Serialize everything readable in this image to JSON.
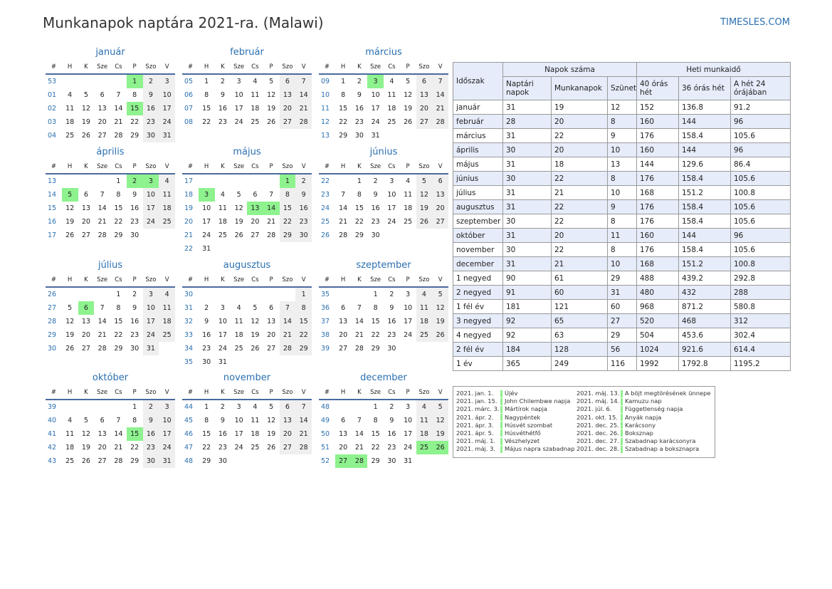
{
  "title": "Munkanapok naptára 2021-ra. (Malawi)",
  "brand": "TIMESLES.COM",
  "weekday_headers": [
    "#",
    "H",
    "K",
    "Sze",
    "Cs",
    "P",
    "Szo",
    "V"
  ],
  "months": [
    {
      "name": "január",
      "weeks": [
        [
          "53",
          "",
          "",
          "",
          "",
          "1",
          "2",
          "3"
        ],
        [
          "01",
          "4",
          "5",
          "6",
          "7",
          "8",
          "9",
          "10"
        ],
        [
          "02",
          "11",
          "12",
          "13",
          "14",
          "15",
          "16",
          "17"
        ],
        [
          "03",
          "18",
          "19",
          "20",
          "21",
          "22",
          "23",
          "24"
        ],
        [
          "04",
          "25",
          "26",
          "27",
          "28",
          "29",
          "30",
          "31"
        ]
      ],
      "holidays": [
        "1",
        "15"
      ]
    },
    {
      "name": "február",
      "weeks": [
        [
          "05",
          "1",
          "2",
          "3",
          "4",
          "5",
          "6",
          "7"
        ],
        [
          "06",
          "8",
          "9",
          "10",
          "11",
          "12",
          "13",
          "14"
        ],
        [
          "07",
          "15",
          "16",
          "17",
          "18",
          "19",
          "20",
          "21"
        ],
        [
          "08",
          "22",
          "23",
          "24",
          "25",
          "26",
          "27",
          "28"
        ]
      ],
      "holidays": []
    },
    {
      "name": "március",
      "weeks": [
        [
          "09",
          "1",
          "2",
          "3",
          "4",
          "5",
          "6",
          "7"
        ],
        [
          "10",
          "8",
          "9",
          "10",
          "11",
          "12",
          "13",
          "14"
        ],
        [
          "11",
          "15",
          "16",
          "17",
          "18",
          "19",
          "20",
          "21"
        ],
        [
          "12",
          "22",
          "23",
          "24",
          "25",
          "26",
          "27",
          "28"
        ],
        [
          "13",
          "29",
          "30",
          "31",
          "",
          "",
          "",
          ""
        ]
      ],
      "holidays": [
        "3"
      ]
    },
    {
      "name": "április",
      "weeks": [
        [
          "13",
          "",
          "",
          "",
          "1",
          "2",
          "3",
          "4"
        ],
        [
          "14",
          "5",
          "6",
          "7",
          "8",
          "9",
          "10",
          "11"
        ],
        [
          "15",
          "12",
          "13",
          "14",
          "15",
          "16",
          "17",
          "18"
        ],
        [
          "16",
          "19",
          "20",
          "21",
          "22",
          "23",
          "24",
          "25"
        ],
        [
          "17",
          "26",
          "27",
          "28",
          "29",
          "30",
          "",
          ""
        ]
      ],
      "holidays": [
        "2",
        "3",
        "5"
      ]
    },
    {
      "name": "május",
      "weeks": [
        [
          "17",
          "",
          "",
          "",
          "",
          "",
          "1",
          "2"
        ],
        [
          "18",
          "3",
          "4",
          "5",
          "6",
          "7",
          "8",
          "9"
        ],
        [
          "19",
          "10",
          "11",
          "12",
          "13",
          "14",
          "15",
          "16"
        ],
        [
          "20",
          "17",
          "18",
          "19",
          "20",
          "21",
          "22",
          "23"
        ],
        [
          "21",
          "24",
          "25",
          "26",
          "27",
          "28",
          "29",
          "30"
        ],
        [
          "22",
          "31",
          "",
          "",
          "",
          "",
          "",
          ""
        ]
      ],
      "holidays": [
        "1",
        "3",
        "13",
        "14"
      ]
    },
    {
      "name": "június",
      "weeks": [
        [
          "22",
          "",
          "1",
          "2",
          "3",
          "4",
          "5",
          "6"
        ],
        [
          "23",
          "7",
          "8",
          "9",
          "10",
          "11",
          "12",
          "13"
        ],
        [
          "24",
          "14",
          "15",
          "16",
          "17",
          "18",
          "19",
          "20"
        ],
        [
          "25",
          "21",
          "22",
          "23",
          "24",
          "25",
          "26",
          "27"
        ],
        [
          "26",
          "28",
          "29",
          "30",
          "",
          "",
          "",
          ""
        ]
      ],
      "holidays": []
    },
    {
      "name": "július",
      "weeks": [
        [
          "26",
          "",
          "",
          "",
          "1",
          "2",
          "3",
          "4"
        ],
        [
          "27",
          "5",
          "6",
          "7",
          "8",
          "9",
          "10",
          "11"
        ],
        [
          "28",
          "12",
          "13",
          "14",
          "15",
          "16",
          "17",
          "18"
        ],
        [
          "29",
          "19",
          "20",
          "21",
          "22",
          "23",
          "24",
          "25"
        ],
        [
          "30",
          "26",
          "27",
          "28",
          "29",
          "30",
          "31",
          ""
        ]
      ],
      "holidays": [
        "6"
      ]
    },
    {
      "name": "augusztus",
      "weeks": [
        [
          "30",
          "",
          "",
          "",
          "",
          "",
          "",
          "1"
        ],
        [
          "31",
          "2",
          "3",
          "4",
          "5",
          "6",
          "7",
          "8"
        ],
        [
          "32",
          "9",
          "10",
          "11",
          "12",
          "13",
          "14",
          "15"
        ],
        [
          "33",
          "16",
          "17",
          "18",
          "19",
          "20",
          "21",
          "22"
        ],
        [
          "34",
          "23",
          "24",
          "25",
          "26",
          "27",
          "28",
          "29"
        ],
        [
          "35",
          "30",
          "31",
          "",
          "",
          "",
          "",
          ""
        ]
      ],
      "holidays": []
    },
    {
      "name": "szeptember",
      "weeks": [
        [
          "35",
          "",
          "",
          "1",
          "2",
          "3",
          "4",
          "5"
        ],
        [
          "36",
          "6",
          "7",
          "8",
          "9",
          "10",
          "11",
          "12"
        ],
        [
          "37",
          "13",
          "14",
          "15",
          "16",
          "17",
          "18",
          "19"
        ],
        [
          "38",
          "20",
          "21",
          "22",
          "23",
          "24",
          "25",
          "26"
        ],
        [
          "39",
          "27",
          "28",
          "29",
          "30",
          "",
          "",
          ""
        ]
      ],
      "holidays": []
    },
    {
      "name": "október",
      "weeks": [
        [
          "39",
          "",
          "",
          "",
          "",
          "1",
          "2",
          "3"
        ],
        [
          "40",
          "4",
          "5",
          "6",
          "7",
          "8",
          "9",
          "10"
        ],
        [
          "41",
          "11",
          "12",
          "13",
          "14",
          "15",
          "16",
          "17"
        ],
        [
          "42",
          "18",
          "19",
          "20",
          "21",
          "22",
          "23",
          "24"
        ],
        [
          "43",
          "25",
          "26",
          "27",
          "28",
          "29",
          "30",
          "31"
        ]
      ],
      "holidays": [
        "15"
      ]
    },
    {
      "name": "november",
      "weeks": [
        [
          "44",
          "1",
          "2",
          "3",
          "4",
          "5",
          "6",
          "7"
        ],
        [
          "45",
          "8",
          "9",
          "10",
          "11",
          "12",
          "13",
          "14"
        ],
        [
          "46",
          "15",
          "16",
          "17",
          "18",
          "19",
          "20",
          "21"
        ],
        [
          "47",
          "22",
          "23",
          "24",
          "25",
          "26",
          "27",
          "28"
        ],
        [
          "48",
          "29",
          "30",
          "",
          "",
          "",
          "",
          ""
        ]
      ],
      "holidays": []
    },
    {
      "name": "december",
      "weeks": [
        [
          "48",
          "",
          "",
          "1",
          "2",
          "3",
          "4",
          "5"
        ],
        [
          "49",
          "6",
          "7",
          "8",
          "9",
          "10",
          "11",
          "12"
        ],
        [
          "50",
          "13",
          "14",
          "15",
          "16",
          "17",
          "18",
          "19"
        ],
        [
          "51",
          "20",
          "21",
          "22",
          "23",
          "24",
          "25",
          "26"
        ],
        [
          "52",
          "27",
          "28",
          "29",
          "30",
          "31",
          "",
          ""
        ]
      ],
      "holidays": [
        "25",
        "26",
        "27",
        "28"
      ]
    }
  ],
  "stats": {
    "col_period": "Időszak",
    "group_days": "Napok száma",
    "group_hours": "Heti munkaidő",
    "cols": [
      "Naptári napok",
      "Munkanapok",
      "Szünet",
      "40 órás hét",
      "36 órás hét",
      "A hét 24 órájában"
    ],
    "rows": [
      [
        "január",
        "31",
        "19",
        "12",
        "152",
        "136.8",
        "91.2"
      ],
      [
        "február",
        "28",
        "20",
        "8",
        "160",
        "144",
        "96"
      ],
      [
        "március",
        "31",
        "22",
        "9",
        "176",
        "158.4",
        "105.6"
      ],
      [
        "április",
        "30",
        "20",
        "10",
        "160",
        "144",
        "96"
      ],
      [
        "május",
        "31",
        "18",
        "13",
        "144",
        "129.6",
        "86.4"
      ],
      [
        "június",
        "30",
        "22",
        "8",
        "176",
        "158.4",
        "105.6"
      ],
      [
        "július",
        "31",
        "21",
        "10",
        "168",
        "151.2",
        "100.8"
      ],
      [
        "augusztus",
        "31",
        "22",
        "9",
        "176",
        "158.4",
        "105.6"
      ],
      [
        "szeptember",
        "30",
        "22",
        "8",
        "176",
        "158.4",
        "105.6"
      ],
      [
        "október",
        "31",
        "20",
        "11",
        "160",
        "144",
        "96"
      ],
      [
        "november",
        "30",
        "22",
        "8",
        "176",
        "158.4",
        "105.6"
      ],
      [
        "december",
        "31",
        "21",
        "10",
        "168",
        "151.2",
        "100.8"
      ],
      [
        "1 negyed",
        "90",
        "61",
        "29",
        "488",
        "439.2",
        "292.8"
      ],
      [
        "2 negyed",
        "91",
        "60",
        "31",
        "480",
        "432",
        "288"
      ],
      [
        "1 fél év",
        "181",
        "121",
        "60",
        "968",
        "871.2",
        "580.8"
      ],
      [
        "3 negyed",
        "92",
        "65",
        "27",
        "520",
        "468",
        "312"
      ],
      [
        "4 negyed",
        "92",
        "63",
        "29",
        "504",
        "453.6",
        "302.4"
      ],
      [
        "2 fél év",
        "184",
        "128",
        "56",
        "1024",
        "921.6",
        "614.4"
      ],
      [
        "1 év",
        "365",
        "249",
        "116",
        "1992",
        "1792.8",
        "1195.2"
      ]
    ]
  },
  "holidays_left": [
    {
      "date": "2021. jan. 1.",
      "name": "Újév"
    },
    {
      "date": "2021. jan. 15.",
      "name": "John Chilembwe napja"
    },
    {
      "date": "2021. márc. 3.",
      "name": "Mártírok napja"
    },
    {
      "date": "2021. ápr. 2.",
      "name": "Nagypéntek"
    },
    {
      "date": "2021. ápr. 3.",
      "name": "Húsvét szombat"
    },
    {
      "date": "2021. ápr. 5.",
      "name": "Húsvéthétfő"
    },
    {
      "date": "2021. máj. 1.",
      "name": "Vészhelyzet"
    },
    {
      "date": "2021. máj. 3.",
      "name": "Május napra szabadnap"
    }
  ],
  "holidays_right": [
    {
      "date": "2021. máj. 13.",
      "name": "A böjt megtörésének ünnepe"
    },
    {
      "date": "2021. máj. 14.",
      "name": "Kamuzu nap"
    },
    {
      "date": "2021. júl. 6.",
      "name": "Függetlenség napja"
    },
    {
      "date": "2021. okt. 15.",
      "name": "Anyák napja"
    },
    {
      "date": "2021. dec. 25.",
      "name": "Karácsony"
    },
    {
      "date": "2021. dec. 26.",
      "name": "Boksznap"
    },
    {
      "date": "2021. dec. 27.",
      "name": "Szabadnap karácsonyra"
    },
    {
      "date": "2021. dec. 28.",
      "name": "Szabadnap a boksznapra"
    }
  ]
}
